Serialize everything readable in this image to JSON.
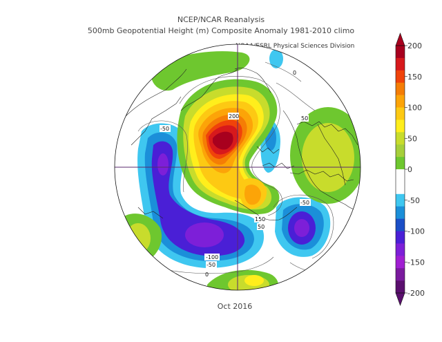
{
  "titles": {
    "line1": "NCEP/NCAR Reanalysis",
    "line2": "500mb Geopotential Height (m) Composite Anomaly 1981-2010 climo",
    "credit": "NOAA/ESRL Physical Sciences Division",
    "date": "Oct 2016"
  },
  "colorbar": {
    "ticks": [
      "200",
      "150",
      "100",
      "50",
      "0",
      "-50",
      "-100",
      "-150",
      "-200"
    ],
    "bins": [
      {
        "color": "#a8001e"
      },
      {
        "color": "#d7191c"
      },
      {
        "color": "#f0430a"
      },
      {
        "color": "#f57d05"
      },
      {
        "color": "#fca408"
      },
      {
        "color": "#fdc913"
      },
      {
        "color": "#ffee1c"
      },
      {
        "color": "#c8dc2c"
      },
      {
        "color": "#a6cf3a"
      },
      {
        "color": "#6ec72f"
      },
      {
        "color": "#ffffff"
      },
      {
        "color": "#ffffff"
      },
      {
        "color": "#3fc7f0"
      },
      {
        "color": "#1b8fd9"
      },
      {
        "color": "#1b4fc7"
      },
      {
        "color": "#4a1fd6"
      },
      {
        "color": "#7d1fd8"
      },
      {
        "color": "#a01ed2"
      },
      {
        "color": "#7a1a9e"
      },
      {
        "color": "#5a0f6e"
      }
    ]
  },
  "map": {
    "contour_labels": [
      {
        "text": "200"
      },
      {
        "text": "-50"
      },
      {
        "text": "50"
      },
      {
        "text": "-50"
      },
      {
        "text": "-100"
      },
      {
        "text": "-50"
      },
      {
        "text": "150"
      },
      {
        "text": "50"
      },
      {
        "text": "0"
      },
      {
        "text": "0"
      }
    ]
  }
}
